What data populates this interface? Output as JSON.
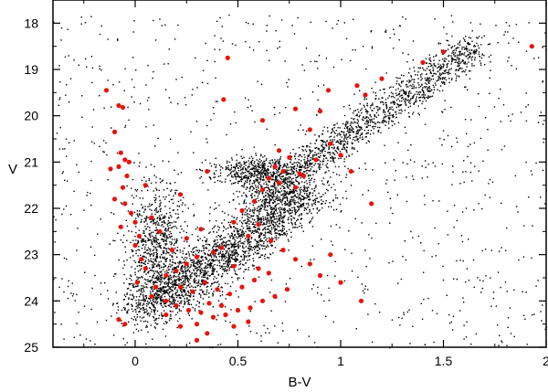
{
  "chart_data": {
    "type": "scatter",
    "title": "",
    "xlabel": "B-V",
    "ylabel": "V",
    "xlim": [
      -0.4,
      2.0
    ],
    "ylim": [
      25.0,
      17.5
    ],
    "y_inverted": true,
    "xticks": [
      0,
      0.5,
      1,
      1.5,
      2
    ],
    "xtick_labels": [
      "0",
      "0.5",
      "1",
      "1.5",
      "2"
    ],
    "yticks": [
      18,
      19,
      20,
      21,
      22,
      23,
      24,
      25
    ],
    "ytick_labels": [
      "18",
      "19",
      "20",
      "21",
      "22",
      "23",
      "24",
      "25"
    ],
    "grid": false,
    "legend": "none",
    "colors": {
      "field_stars": "#000000",
      "members": "#e8140a"
    },
    "series": [
      {
        "role": "black-dots",
        "color": "#000000",
        "marker": "small-dot",
        "description_features": [
          {
            "feature": "main-sequence",
            "x_range": [
              0.0,
              0.9
            ],
            "y_range": [
              21.5,
              24.5
            ]
          },
          {
            "feature": "giant-branch",
            "x_range": [
              0.5,
              1.7
            ],
            "y_range": [
              18.5,
              22.0
            ]
          },
          {
            "feature": "blue-sequence",
            "x_range": [
              -0.1,
              0.3
            ],
            "y_range": [
              20.5,
              24.5
            ]
          }
        ],
        "points": [
          [
            -0.12,
            19.8
          ],
          [
            -0.05,
            20.2
          ],
          [
            0.02,
            21.0
          ],
          [
            0.05,
            21.4
          ],
          [
            0.08,
            21.9
          ],
          [
            0.1,
            22.3
          ],
          [
            0.15,
            22.6
          ],
          [
            0.2,
            22.9
          ],
          [
            0.28,
            23.2
          ],
          [
            0.35,
            23.5
          ],
          [
            0.42,
            23.7
          ],
          [
            0.5,
            23.9
          ],
          [
            0.58,
            24.0
          ],
          [
            0.66,
            24.2
          ],
          [
            0.3,
            22.4
          ],
          [
            0.38,
            22.7
          ],
          [
            0.45,
            23.0
          ],
          [
            0.52,
            22.8
          ],
          [
            0.6,
            22.6
          ],
          [
            0.68,
            22.3
          ],
          [
            0.75,
            21.9
          ],
          [
            0.82,
            21.5
          ],
          [
            0.9,
            21.1
          ],
          [
            0.98,
            20.7
          ],
          [
            1.05,
            20.3
          ],
          [
            1.12,
            19.9
          ],
          [
            1.2,
            19.6
          ],
          [
            1.28,
            19.3
          ],
          [
            1.36,
            19.1
          ],
          [
            1.44,
            18.9
          ],
          [
            1.52,
            18.7
          ],
          [
            1.6,
            18.55
          ],
          [
            1.68,
            18.45
          ],
          [
            0.62,
            21.3
          ],
          [
            0.7,
            21.1
          ],
          [
            0.78,
            21.0
          ],
          [
            0.86,
            20.9
          ],
          [
            0.94,
            20.6
          ],
          [
            0.2,
            21.6
          ],
          [
            0.28,
            21.9
          ],
          [
            0.36,
            22.1
          ],
          [
            0.1,
            23.5
          ],
          [
            0.15,
            24.0
          ],
          [
            0.22,
            24.2
          ],
          [
            0.4,
            24.3
          ],
          [
            0.55,
            24.4
          ],
          [
            0.75,
            23.5
          ],
          [
            0.85,
            23.1
          ],
          [
            0.95,
            22.7
          ],
          [
            1.1,
            22.3
          ],
          [
            -0.2,
            23.0
          ],
          [
            -0.25,
            24.1
          ],
          [
            1.3,
            21.0
          ],
          [
            1.5,
            20.5
          ],
          [
            1.7,
            21.7
          ],
          [
            1.8,
            22.9
          ],
          [
            1.9,
            19.5
          ],
          [
            0.0,
            19.0
          ],
          [
            0.7,
            18.5
          ],
          [
            1.9,
            23.8
          ]
        ]
      },
      {
        "role": "red-dots",
        "color": "#e8140a",
        "marker": "filled-circle",
        "points": [
          [
            -0.14,
            19.45
          ],
          [
            -0.08,
            19.78
          ],
          [
            -0.06,
            19.82
          ],
          [
            -0.1,
            20.35
          ],
          [
            -0.07,
            20.8
          ],
          [
            -0.05,
            20.95
          ],
          [
            -0.03,
            21.0
          ],
          [
            -0.08,
            21.1
          ],
          [
            -0.12,
            21.15
          ],
          [
            -0.04,
            21.3
          ],
          [
            -0.06,
            21.55
          ],
          [
            -0.1,
            21.8
          ],
          [
            -0.05,
            21.9
          ],
          [
            -0.02,
            22.1
          ],
          [
            0.0,
            22.3
          ],
          [
            -0.07,
            22.4
          ],
          [
            0.02,
            22.6
          ],
          [
            0.0,
            22.8
          ],
          [
            0.03,
            23.1
          ],
          [
            0.05,
            23.3
          ],
          [
            0.01,
            23.6
          ],
          [
            -0.08,
            24.4
          ],
          [
            -0.05,
            24.5
          ],
          [
            0.45,
            18.75
          ],
          [
            0.43,
            19.65
          ],
          [
            0.62,
            20.1
          ],
          [
            0.78,
            19.85
          ],
          [
            0.85,
            20.3
          ],
          [
            0.9,
            19.9
          ],
          [
            0.94,
            19.45
          ],
          [
            1.08,
            19.35
          ],
          [
            1.12,
            19.55
          ],
          [
            1.2,
            19.2
          ],
          [
            1.4,
            18.85
          ],
          [
            1.5,
            18.62
          ],
          [
            1.93,
            18.5
          ],
          [
            0.7,
            20.75
          ],
          [
            0.75,
            20.9
          ],
          [
            0.68,
            21.1
          ],
          [
            0.72,
            21.2
          ],
          [
            0.8,
            21.25
          ],
          [
            0.65,
            21.35
          ],
          [
            0.7,
            21.45
          ],
          [
            0.62,
            21.6
          ],
          [
            0.78,
            21.55
          ],
          [
            0.82,
            21.3
          ],
          [
            0.88,
            20.95
          ],
          [
            0.95,
            20.6
          ],
          [
            1.0,
            20.85
          ],
          [
            1.05,
            21.2
          ],
          [
            0.58,
            21.85
          ],
          [
            0.52,
            22.05
          ],
          [
            0.48,
            22.3
          ],
          [
            0.6,
            22.35
          ],
          [
            0.55,
            22.6
          ],
          [
            0.66,
            22.7
          ],
          [
            0.72,
            22.9
          ],
          [
            0.78,
            23.1
          ],
          [
            0.85,
            23.2
          ],
          [
            0.9,
            23.45
          ],
          [
            0.95,
            23.0
          ],
          [
            0.42,
            22.85
          ],
          [
            0.38,
            22.95
          ],
          [
            0.3,
            23.05
          ],
          [
            0.25,
            23.2
          ],
          [
            0.2,
            23.35
          ],
          [
            0.15,
            23.45
          ],
          [
            0.1,
            23.7
          ],
          [
            0.08,
            23.9
          ],
          [
            0.15,
            24.0
          ],
          [
            0.2,
            24.1
          ],
          [
            0.26,
            24.2
          ],
          [
            0.32,
            24.25
          ],
          [
            0.38,
            24.35
          ],
          [
            0.44,
            24.3
          ],
          [
            0.5,
            24.2
          ],
          [
            0.56,
            24.15
          ],
          [
            0.62,
            24.0
          ],
          [
            0.68,
            23.9
          ],
          [
            0.74,
            23.75
          ],
          [
            0.34,
            23.6
          ],
          [
            0.4,
            23.75
          ],
          [
            0.46,
            23.85
          ],
          [
            0.52,
            23.7
          ],
          [
            0.58,
            23.55
          ],
          [
            0.28,
            23.8
          ],
          [
            0.22,
            23.7
          ],
          [
            0.36,
            24.05
          ],
          [
            0.42,
            24.1
          ],
          [
            0.3,
            24.5
          ],
          [
            0.35,
            24.7
          ],
          [
            0.22,
            24.55
          ],
          [
            0.15,
            24.3
          ],
          [
            0.48,
            24.55
          ],
          [
            0.55,
            24.45
          ],
          [
            0.3,
            24.85
          ],
          [
            0.6,
            23.3
          ],
          [
            0.65,
            23.4
          ],
          [
            0.48,
            23.25
          ],
          [
            0.18,
            22.9
          ],
          [
            0.25,
            22.65
          ],
          [
            0.32,
            22.45
          ],
          [
            0.12,
            22.5
          ],
          [
            0.08,
            22.2
          ],
          [
            0.22,
            21.7
          ],
          [
            1.1,
            24.0
          ],
          [
            1.0,
            23.6
          ],
          [
            1.15,
            21.9
          ],
          [
            0.35,
            21.2
          ],
          [
            0.05,
            21.5
          ]
        ]
      }
    ]
  }
}
